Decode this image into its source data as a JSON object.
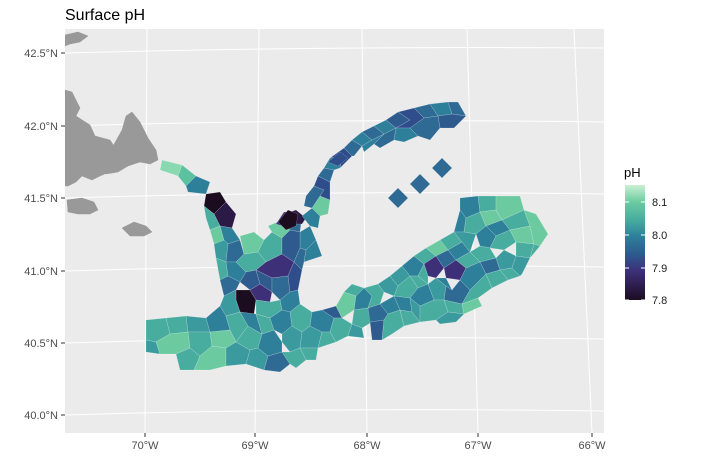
{
  "title": "Surface pH",
  "x_axis": {
    "ticks": [
      {
        "value": -70,
        "label": "70°W"
      },
      {
        "value": -69,
        "label": "69°W"
      },
      {
        "value": -68,
        "label": "68°W"
      },
      {
        "value": -67,
        "label": "67°W"
      },
      {
        "value": -66,
        "label": "66°W"
      }
    ]
  },
  "y_axis": {
    "ticks": [
      {
        "value": 42.5,
        "label": "42.5°N"
      },
      {
        "value": 42.0,
        "label": "42.0°N"
      },
      {
        "value": 41.5,
        "label": "41.5°N"
      },
      {
        "value": 41.0,
        "label": "41.0°N"
      },
      {
        "value": 40.5,
        "label": "40.5°N"
      },
      {
        "value": 40.0,
        "label": "40.0°N"
      }
    ]
  },
  "legend": {
    "title": "pH",
    "position": "right",
    "range": [
      7.8,
      8.15
    ],
    "labels": [
      "8.1",
      "8.0",
      "7.9",
      "7.8"
    ]
  },
  "colors": {
    "panel_background": "#ebebeb",
    "gridlines": "#ffffff",
    "land": "#999999",
    "ph_scale": [
      "#1b0d1f",
      "#3d2a6a",
      "#2e4d8a",
      "#2b6f96",
      "#32909d",
      "#48ad9f",
      "#6ccaa0",
      "#cbefd1"
    ]
  },
  "chart_data": {
    "type": "map",
    "title": "Surface pH",
    "legend_title": "pH",
    "color_scale_range": [
      7.8,
      8.15
    ],
    "xlim": [
      -70.7,
      -65.9
    ],
    "ylim": [
      39.95,
      42.65
    ],
    "grid": true,
    "region_ph_samples": [
      {
        "lon": -69.6,
        "lat": 41.75,
        "ph": 8.12
      },
      {
        "lon": -69.4,
        "lat": 41.55,
        "ph": 7.98
      },
      {
        "lon": -69.35,
        "lat": 41.45,
        "ph": 7.83
      },
      {
        "lon": -69.25,
        "lat": 41.35,
        "ph": 7.81
      },
      {
        "lon": -69.3,
        "lat": 41.2,
        "ph": 8.04
      },
      {
        "lon": -69.1,
        "lat": 41.05,
        "ph": 8.02
      },
      {
        "lon": -68.95,
        "lat": 41.2,
        "ph": 8.06
      },
      {
        "lon": -68.8,
        "lat": 41.25,
        "ph": 7.82
      },
      {
        "lon": -68.7,
        "lat": 41.45,
        "ph": 8.02
      },
      {
        "lon": -68.55,
        "lat": 41.6,
        "ph": 7.97
      },
      {
        "lon": -68.3,
        "lat": 41.85,
        "ph": 7.9
      },
      {
        "lon": -68.0,
        "lat": 41.95,
        "ph": 8.0
      },
      {
        "lon": -67.6,
        "lat": 42.05,
        "ph": 7.95
      },
      {
        "lon": -67.3,
        "lat": 42.05,
        "ph": 7.96
      },
      {
        "lon": -67.75,
        "lat": 41.5,
        "ph": 7.97
      },
      {
        "lon": -67.55,
        "lat": 41.6,
        "ph": 7.97
      },
      {
        "lon": -67.3,
        "lat": 41.7,
        "ph": 7.96
      },
      {
        "lon": -68.95,
        "lat": 40.9,
        "ph": 7.93
      },
      {
        "lon": -69.15,
        "lat": 40.75,
        "ph": 7.84
      },
      {
        "lon": -68.95,
        "lat": 40.75,
        "ph": 7.95
      },
      {
        "lon": -69.05,
        "lat": 40.6,
        "ph": 8.03
      },
      {
        "lon": -69.6,
        "lat": 40.55,
        "ph": 8.03
      },
      {
        "lon": -69.4,
        "lat": 40.45,
        "ph": 8.09
      },
      {
        "lon": -68.95,
        "lat": 40.4,
        "ph": 7.99
      },
      {
        "lon": -68.75,
        "lat": 40.5,
        "ph": 8.04
      },
      {
        "lon": -68.45,
        "lat": 40.65,
        "ph": 8.0
      },
      {
        "lon": -68.2,
        "lat": 40.65,
        "ph": 7.95
      },
      {
        "lon": -68.05,
        "lat": 40.6,
        "ph": 7.88
      },
      {
        "lon": -67.8,
        "lat": 40.8,
        "ph": 8.06
      },
      {
        "lon": -67.5,
        "lat": 40.85,
        "ph": 8.03
      },
      {
        "lon": -67.4,
        "lat": 41.0,
        "ph": 7.88
      },
      {
        "lon": -67.2,
        "lat": 41.0,
        "ph": 7.92
      },
      {
        "lon": -67.0,
        "lat": 41.15,
        "ph": 8.06
      },
      {
        "lon": -67.1,
        "lat": 40.85,
        "ph": 8.02
      },
      {
        "lon": -66.8,
        "lat": 41.3,
        "ph": 8.05
      },
      {
        "lon": -66.7,
        "lat": 41.05,
        "ph": 8.08
      }
    ]
  }
}
